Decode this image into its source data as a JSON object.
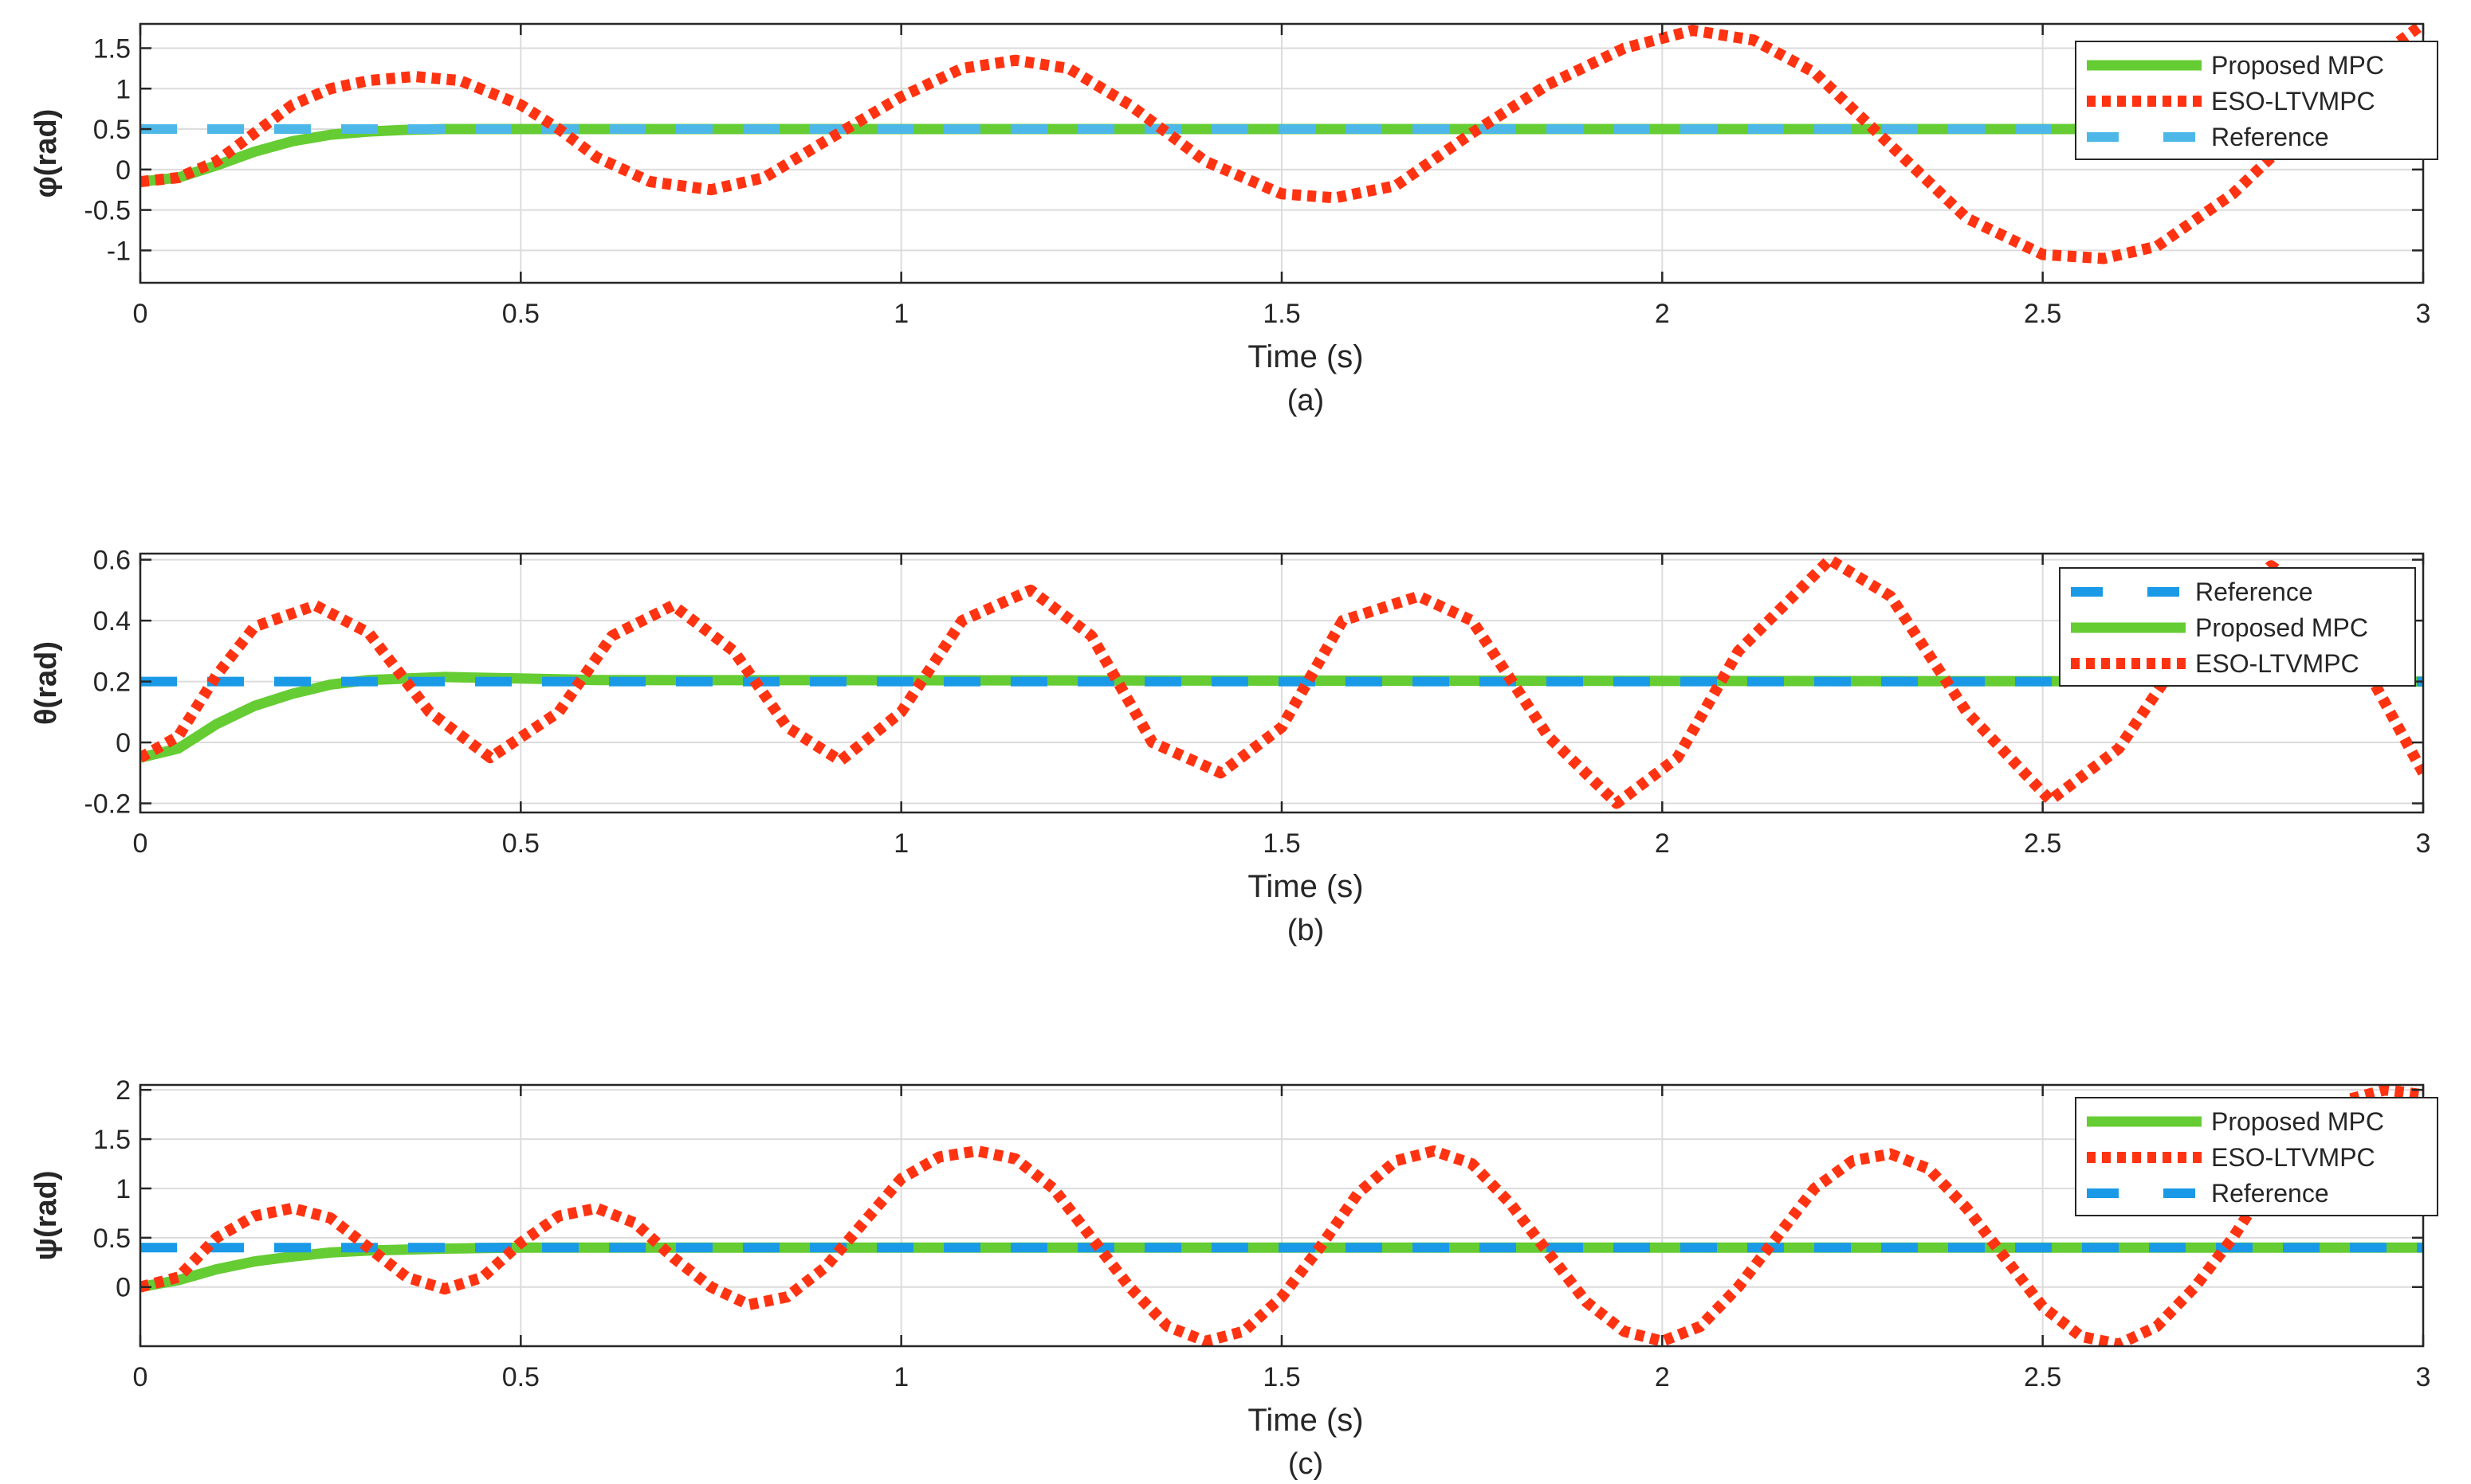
{
  "figure": {
    "background": "#ffffff"
  },
  "chart_data": [
    {
      "type": "line",
      "caption": "(a)",
      "xlabel": "Time (s)",
      "ylabel": "φ(rad)",
      "xlim": [
        0,
        3
      ],
      "ylim": [
        -1.4,
        1.8
      ],
      "xticks": [
        0,
        0.5,
        1,
        1.5,
        2,
        2.5,
        3
      ],
      "xtick_labels": [
        "0",
        "0.5",
        "1",
        "1.5",
        "2",
        "2.5",
        "3"
      ],
      "yticks": [
        -1,
        -0.5,
        0,
        0.5,
        1,
        1.5
      ],
      "ytick_labels": [
        "-1",
        "-0.5",
        "0",
        "0.5",
        "1",
        "1.5"
      ],
      "grid": true,
      "legend_position": "top-right",
      "series": [
        {
          "name": "Proposed MPC",
          "color": "#66cc33",
          "style": "solid",
          "x": [
            0,
            0.05,
            0.1,
            0.15,
            0.2,
            0.25,
            0.3,
            0.35,
            0.4,
            0.5,
            3
          ],
          "y": [
            -0.15,
            -0.1,
            0.05,
            0.22,
            0.35,
            0.43,
            0.47,
            0.49,
            0.5,
            0.5,
            0.5
          ]
        },
        {
          "name": "ESO-LTVMPC",
          "color": "#ff3311",
          "style": "dotted",
          "x": [
            0,
            0.05,
            0.1,
            0.15,
            0.2,
            0.25,
            0.3,
            0.36,
            0.42,
            0.5,
            0.55,
            0.6,
            0.67,
            0.75,
            0.82,
            0.9,
            1.0,
            1.08,
            1.15,
            1.22,
            1.3,
            1.4,
            1.5,
            1.57,
            1.65,
            1.75,
            1.85,
            1.95,
            2.04,
            2.12,
            2.2,
            2.3,
            2.4,
            2.5,
            2.58,
            2.65,
            2.75,
            2.85,
            2.92,
            3.0
          ],
          "y": [
            -0.15,
            -0.1,
            0.1,
            0.45,
            0.8,
            1.0,
            1.1,
            1.15,
            1.1,
            0.8,
            0.5,
            0.15,
            -0.15,
            -0.25,
            -0.1,
            0.35,
            0.9,
            1.25,
            1.35,
            1.25,
            0.8,
            0.1,
            -0.3,
            -0.35,
            -0.2,
            0.45,
            1.05,
            1.5,
            1.72,
            1.6,
            1.2,
            0.3,
            -0.6,
            -1.05,
            -1.1,
            -0.95,
            -0.3,
            0.6,
            1.25,
            1.8
          ]
        },
        {
          "name": "Reference",
          "color": "#4db8e8",
          "style": "dashed",
          "x": [
            0,
            3
          ],
          "y": [
            0.5,
            0.5
          ]
        }
      ],
      "legend_order": [
        "Proposed MPC",
        "ESO-LTVMPC",
        "Reference"
      ]
    },
    {
      "type": "line",
      "caption": "(b)",
      "xlabel": "Time (s)",
      "ylabel": "θ(rad)",
      "xlim": [
        0,
        3
      ],
      "ylim": [
        -0.23,
        0.62
      ],
      "xticks": [
        0,
        0.5,
        1,
        1.5,
        2,
        2.5,
        3
      ],
      "xtick_labels": [
        "0",
        "0.5",
        "1",
        "1.5",
        "2",
        "2.5",
        "3"
      ],
      "yticks": [
        -0.2,
        0,
        0.2,
        0.4,
        0.6
      ],
      "ytick_labels": [
        "-0.2",
        "0",
        "0.2",
        "0.4",
        "0.6"
      ],
      "grid": true,
      "legend_position": "top-right",
      "series": [
        {
          "name": "Reference",
          "color": "#1a9ae6",
          "style": "dashed",
          "x": [
            0,
            3
          ],
          "y": [
            0.2,
            0.2
          ]
        },
        {
          "name": "Proposed MPC",
          "color": "#66cc33",
          "style": "solid",
          "x": [
            0,
            0.05,
            0.1,
            0.15,
            0.2,
            0.25,
            0.3,
            0.4,
            0.5,
            0.6,
            3
          ],
          "y": [
            -0.05,
            -0.02,
            0.06,
            0.12,
            0.16,
            0.19,
            0.205,
            0.215,
            0.21,
            0.205,
            0.2
          ]
        },
        {
          "name": "ESO-LTVMPC",
          "color": "#ff3311",
          "style": "dotted",
          "x": [
            0,
            0.05,
            0.1,
            0.15,
            0.23,
            0.3,
            0.38,
            0.46,
            0.55,
            0.62,
            0.7,
            0.78,
            0.85,
            0.92,
            1.0,
            1.08,
            1.17,
            1.25,
            1.33,
            1.42,
            1.5,
            1.58,
            1.68,
            1.75,
            1.85,
            1.94,
            2.02,
            2.1,
            2.22,
            2.3,
            2.4,
            2.51,
            2.6,
            2.7,
            2.8,
            2.88,
            3.0
          ],
          "y": [
            -0.05,
            0.02,
            0.22,
            0.38,
            0.45,
            0.36,
            0.1,
            -0.05,
            0.1,
            0.35,
            0.45,
            0.3,
            0.05,
            -0.06,
            0.1,
            0.4,
            0.5,
            0.35,
            0.0,
            -0.1,
            0.05,
            0.4,
            0.48,
            0.4,
            0.02,
            -0.2,
            -0.05,
            0.3,
            0.6,
            0.48,
            0.1,
            -0.19,
            -0.02,
            0.35,
            0.58,
            0.45,
            -0.1
          ]
        }
      ],
      "legend_order": [
        "Reference",
        "Proposed MPC",
        "ESO-LTVMPC"
      ]
    },
    {
      "type": "line",
      "caption": "(c)",
      "xlabel": "Time (s)",
      "ylabel": "ψ(rad)",
      "xlim": [
        0,
        3
      ],
      "ylim": [
        -0.6,
        2.05
      ],
      "xticks": [
        0,
        0.5,
        1,
        1.5,
        2,
        2.5,
        3
      ],
      "xtick_labels": [
        "0",
        "0.5",
        "1",
        "1.5",
        "2",
        "2.5",
        "3"
      ],
      "yticks": [
        0,
        0.5,
        1,
        1.5,
        2
      ],
      "ytick_labels": [
        "0",
        "0.5",
        "1",
        "1.5",
        "2"
      ],
      "grid": true,
      "legend_position": "top-right",
      "series": [
        {
          "name": "Proposed MPC",
          "color": "#66cc33",
          "style": "solid",
          "x": [
            0,
            0.05,
            0.1,
            0.15,
            0.2,
            0.25,
            0.3,
            0.4,
            0.5,
            3
          ],
          "y": [
            0.0,
            0.07,
            0.18,
            0.26,
            0.31,
            0.35,
            0.37,
            0.39,
            0.4,
            0.4
          ]
        },
        {
          "name": "ESO-LTVMPC",
          "color": "#ff3311",
          "style": "dotted",
          "x": [
            0,
            0.05,
            0.1,
            0.15,
            0.2,
            0.25,
            0.3,
            0.35,
            0.4,
            0.45,
            0.5,
            0.55,
            0.6,
            0.65,
            0.7,
            0.75,
            0.8,
            0.85,
            0.9,
            0.95,
            1.0,
            1.05,
            1.1,
            1.15,
            1.2,
            1.25,
            1.3,
            1.35,
            1.4,
            1.45,
            1.5,
            1.55,
            1.6,
            1.65,
            1.7,
            1.75,
            1.8,
            1.85,
            1.9,
            1.95,
            2.0,
            2.05,
            2.1,
            2.15,
            2.2,
            2.25,
            2.3,
            2.35,
            2.4,
            2.45,
            2.5,
            2.55,
            2.6,
            2.65,
            2.7,
            2.75,
            2.8,
            2.85,
            2.9,
            2.95,
            3.0
          ],
          "y": [
            0.0,
            0.1,
            0.5,
            0.72,
            0.8,
            0.7,
            0.4,
            0.1,
            -0.02,
            0.1,
            0.45,
            0.72,
            0.8,
            0.65,
            0.3,
            0.0,
            -0.18,
            -0.1,
            0.2,
            0.65,
            1.1,
            1.32,
            1.38,
            1.3,
            1.0,
            0.5,
            0.0,
            -0.4,
            -0.55,
            -0.45,
            -0.1,
            0.4,
            0.95,
            1.28,
            1.38,
            1.25,
            0.85,
            0.35,
            -0.15,
            -0.45,
            -0.55,
            -0.4,
            0.0,
            0.5,
            1.0,
            1.28,
            1.35,
            1.2,
            0.8,
            0.3,
            -0.2,
            -0.5,
            -0.58,
            -0.4,
            0.0,
            0.5,
            1.1,
            1.6,
            1.9,
            2.0,
            1.95
          ]
        },
        {
          "name": "Reference",
          "color": "#1a9ae6",
          "style": "dashed",
          "x": [
            0,
            3
          ],
          "y": [
            0.4,
            0.4
          ]
        }
      ],
      "legend_order": [
        "Proposed MPC",
        "ESO-LTVMPC",
        "Reference"
      ]
    }
  ]
}
